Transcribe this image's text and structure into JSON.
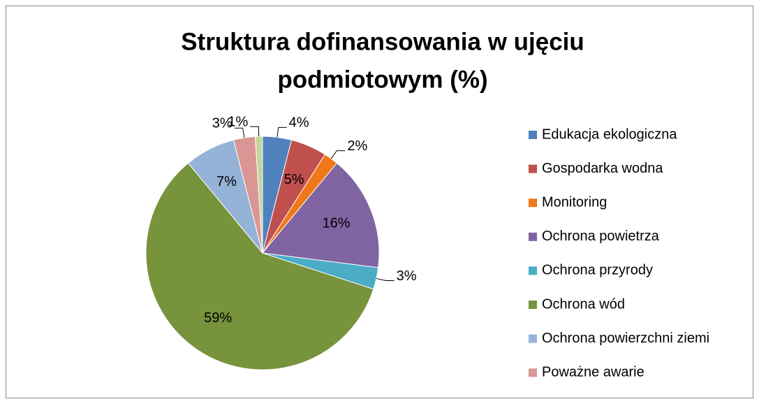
{
  "chart_data": {
    "type": "pie",
    "title": [
      "Struktura dofinansowania w ujęciu",
      "podmiotowym (%)"
    ],
    "categories": [
      "Edukacja ekologiczna",
      "Gospodarka wodna",
      "Monitoring",
      "Ochrona powietrza",
      "Ochrona przyrody",
      "Ochrona wód",
      "Ochrona powierzchni ziemi",
      "Poważne awarie",
      null
    ],
    "values": [
      4,
      5,
      2,
      16,
      3,
      59,
      7,
      3,
      1
    ],
    "value_labels": [
      "4%",
      "5%",
      "2%",
      "16%",
      "3%",
      "59%",
      "7%",
      "3%",
      "1%"
    ],
    "colors": [
      "#4f81bd",
      "#c0504d",
      "#f07818",
      "#8064a2",
      "#4bacc6",
      "#77933c",
      "#95b3d7",
      "#d99694",
      "#c3d69b"
    ],
    "legend": "right"
  }
}
